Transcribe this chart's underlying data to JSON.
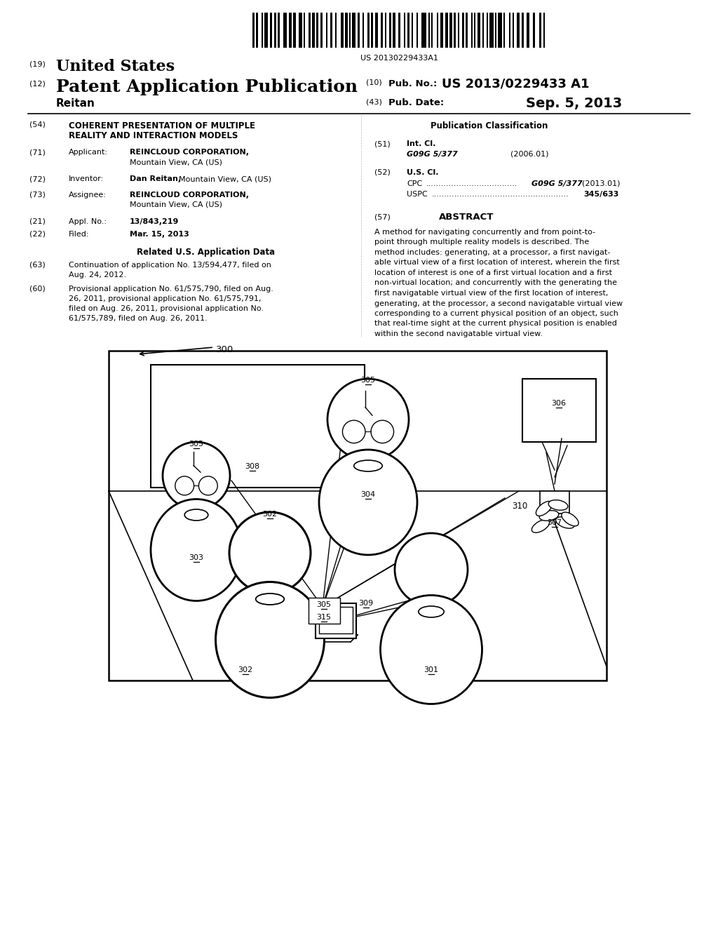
{
  "bg_color": "#ffffff",
  "barcode_number": "US 20130229433A1",
  "header_19": "(19)",
  "header_19_bold": "United States",
  "header_12": "(12)",
  "header_12_bold": "Patent Application Publication",
  "header_10_label": "(10)",
  "header_10_pubno_label": "Pub. No.:",
  "header_10_pubno_val": "US 2013/0229433 A1",
  "header_43_label": "(43)",
  "header_43_pubdate_label": "Pub. Date:",
  "header_43_pubdate_val": "Sep. 5, 2013",
  "inventor_surname": "Reitan",
  "s54_num": "(54)",
  "s54_line1": "COHERENT PRESENTATION OF MULTIPLE",
  "s54_line2": "REALITY AND INTERACTION MODELS",
  "s71_num": "(71)",
  "s71_lbl": "Applicant:",
  "s71_val1": "REINCLOUD CORPORATION,",
  "s71_val2": "Mountain View, CA (US)",
  "s72_num": "(72)",
  "s72_lbl": "Inventor:",
  "s72_bold": "Dan Reitan,",
  "s72_plain": "Mountain View, CA (US)",
  "s73_num": "(73)",
  "s73_lbl": "Assignee:",
  "s73_val1": "REINCLOUD CORPORATION,",
  "s73_val2": "Mountain View, CA (US)",
  "s21_num": "(21)",
  "s21_lbl": "Appl. No.:",
  "s21_val": "13/843,219",
  "s22_num": "(22)",
  "s22_lbl": "Filed:",
  "s22_val": "Mar. 15, 2013",
  "related_header": "Related U.S. Application Data",
  "s63_num": "(63)",
  "s63_lines": [
    "Continuation of application No. 13/594,477, filed on",
    "Aug. 24, 2012."
  ],
  "s60_num": "(60)",
  "s60_lines": [
    "Provisional application No. 61/575,790, filed on Aug.",
    "26, 2011, provisional application No. 61/575,791,",
    "filed on Aug. 26, 2011, provisional application No.",
    "61/575,789, filed on Aug. 26, 2011."
  ],
  "pub_class_title": "Publication Classification",
  "s51_num": "(51)",
  "s51_lbl": "Int. Cl.",
  "s51_class": "G09G 5/377",
  "s51_year": "(2006.01)",
  "s52_num": "(52)",
  "s52_lbl": "U.S. Cl.",
  "s52_cpc_lbl": "CPC",
  "s52_cpc_dots": "....................................",
  "s52_cpc_val": "G09G 5/377",
  "s52_cpc_year": "(2013.01)",
  "s52_uspc_lbl": "USPC",
  "s52_uspc_dots": "......................................................",
  "s52_uspc_val": "345/633",
  "s57_num": "(57)",
  "s57_lbl": "ABSTRACT",
  "abstract_lines": [
    "A method for navigating concurrently and from point-to-",
    "point through multiple reality models is described. The",
    "method includes: generating, at a processor, a first navigat-",
    "able virtual view of a first location of interest, wherein the first",
    "location of interest is one of a first virtual location and a first",
    "non-virtual location; and concurrently with the generating the",
    "first navigatable virtual view of the first location of interest,",
    "generating, at the processor, a second navigatable virtual view",
    "corresponding to a current physical position of an object, such",
    "that real-time sight at the current physical position is enabled",
    "within the second navigatable virtual view."
  ]
}
